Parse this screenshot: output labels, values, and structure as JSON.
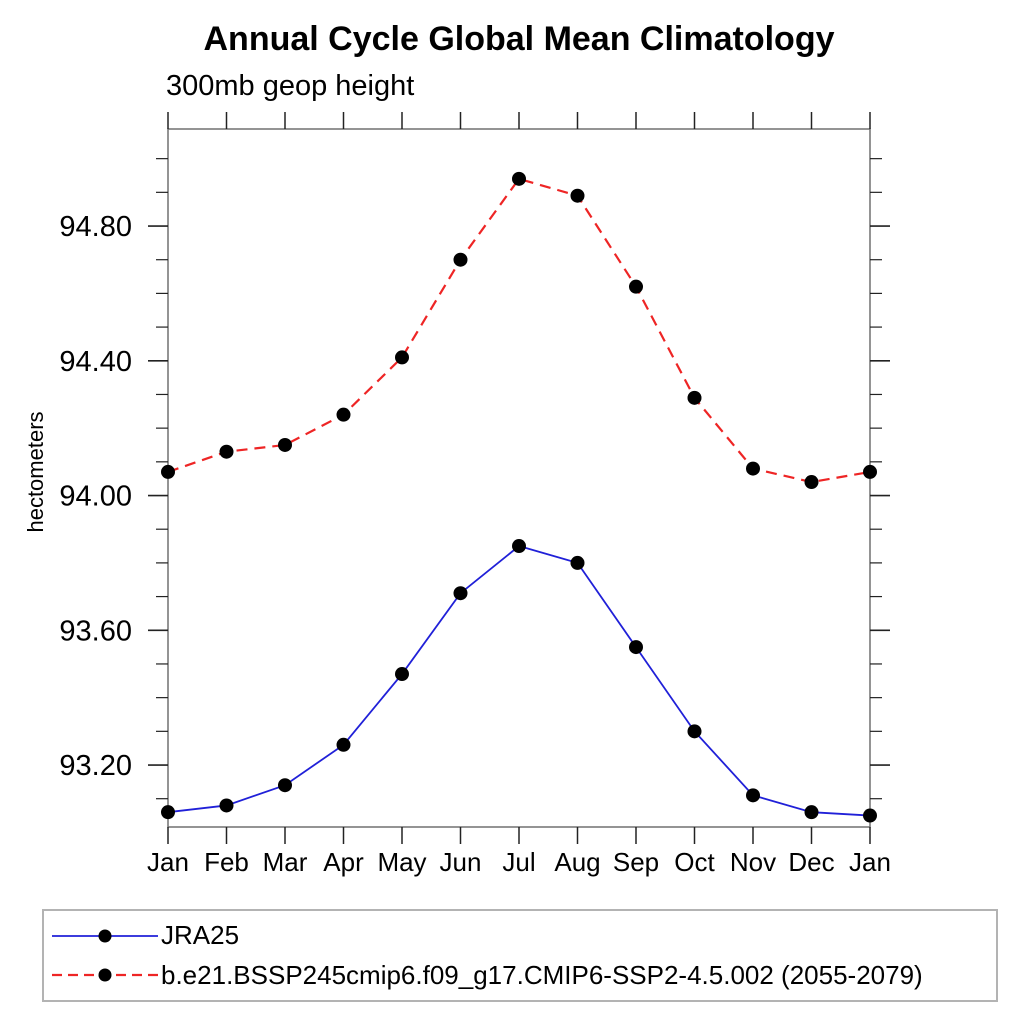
{
  "chart_data": {
    "type": "line",
    "title": "Annual Cycle Global Mean Climatology",
    "subtitle": "300mb geop height",
    "ylabel": "hectometers",
    "categories": [
      "Jan",
      "Feb",
      "Mar",
      "Apr",
      "May",
      "Jun",
      "Jul",
      "Aug",
      "Sep",
      "Oct",
      "Nov",
      "Dec",
      "Jan"
    ],
    "series": [
      {
        "name": "JRA25",
        "color": "#2020d8",
        "line_style": "solid",
        "marker": "filled-circle",
        "values": [
          93.06,
          93.08,
          93.14,
          93.26,
          93.47,
          93.71,
          93.85,
          93.8,
          93.55,
          93.3,
          93.11,
          93.06,
          93.05
        ]
      },
      {
        "name": "b.e21.BSSP245cmip6.f09_g17.CMIP6-SSP2-4.5.002 (2055-2079)",
        "color": "#ee2525",
        "line_style": "dashed",
        "marker": "filled-circle",
        "values": [
          94.07,
          94.13,
          94.15,
          94.24,
          94.41,
          94.7,
          94.94,
          94.89,
          94.62,
          94.29,
          94.08,
          94.04,
          94.07
        ]
      }
    ],
    "ylim": [
      93.016,
      95.088
    ],
    "yticks_major": [
      93.2,
      93.6,
      94.0,
      94.4,
      94.8
    ],
    "ytick_label_format_decimals": 2,
    "y_minor_step": 0.1,
    "marker_color": "#000000",
    "axis_box_color": "#707070",
    "tick_color": "#222222",
    "grid": false,
    "legend_position": "bottom-left"
  }
}
